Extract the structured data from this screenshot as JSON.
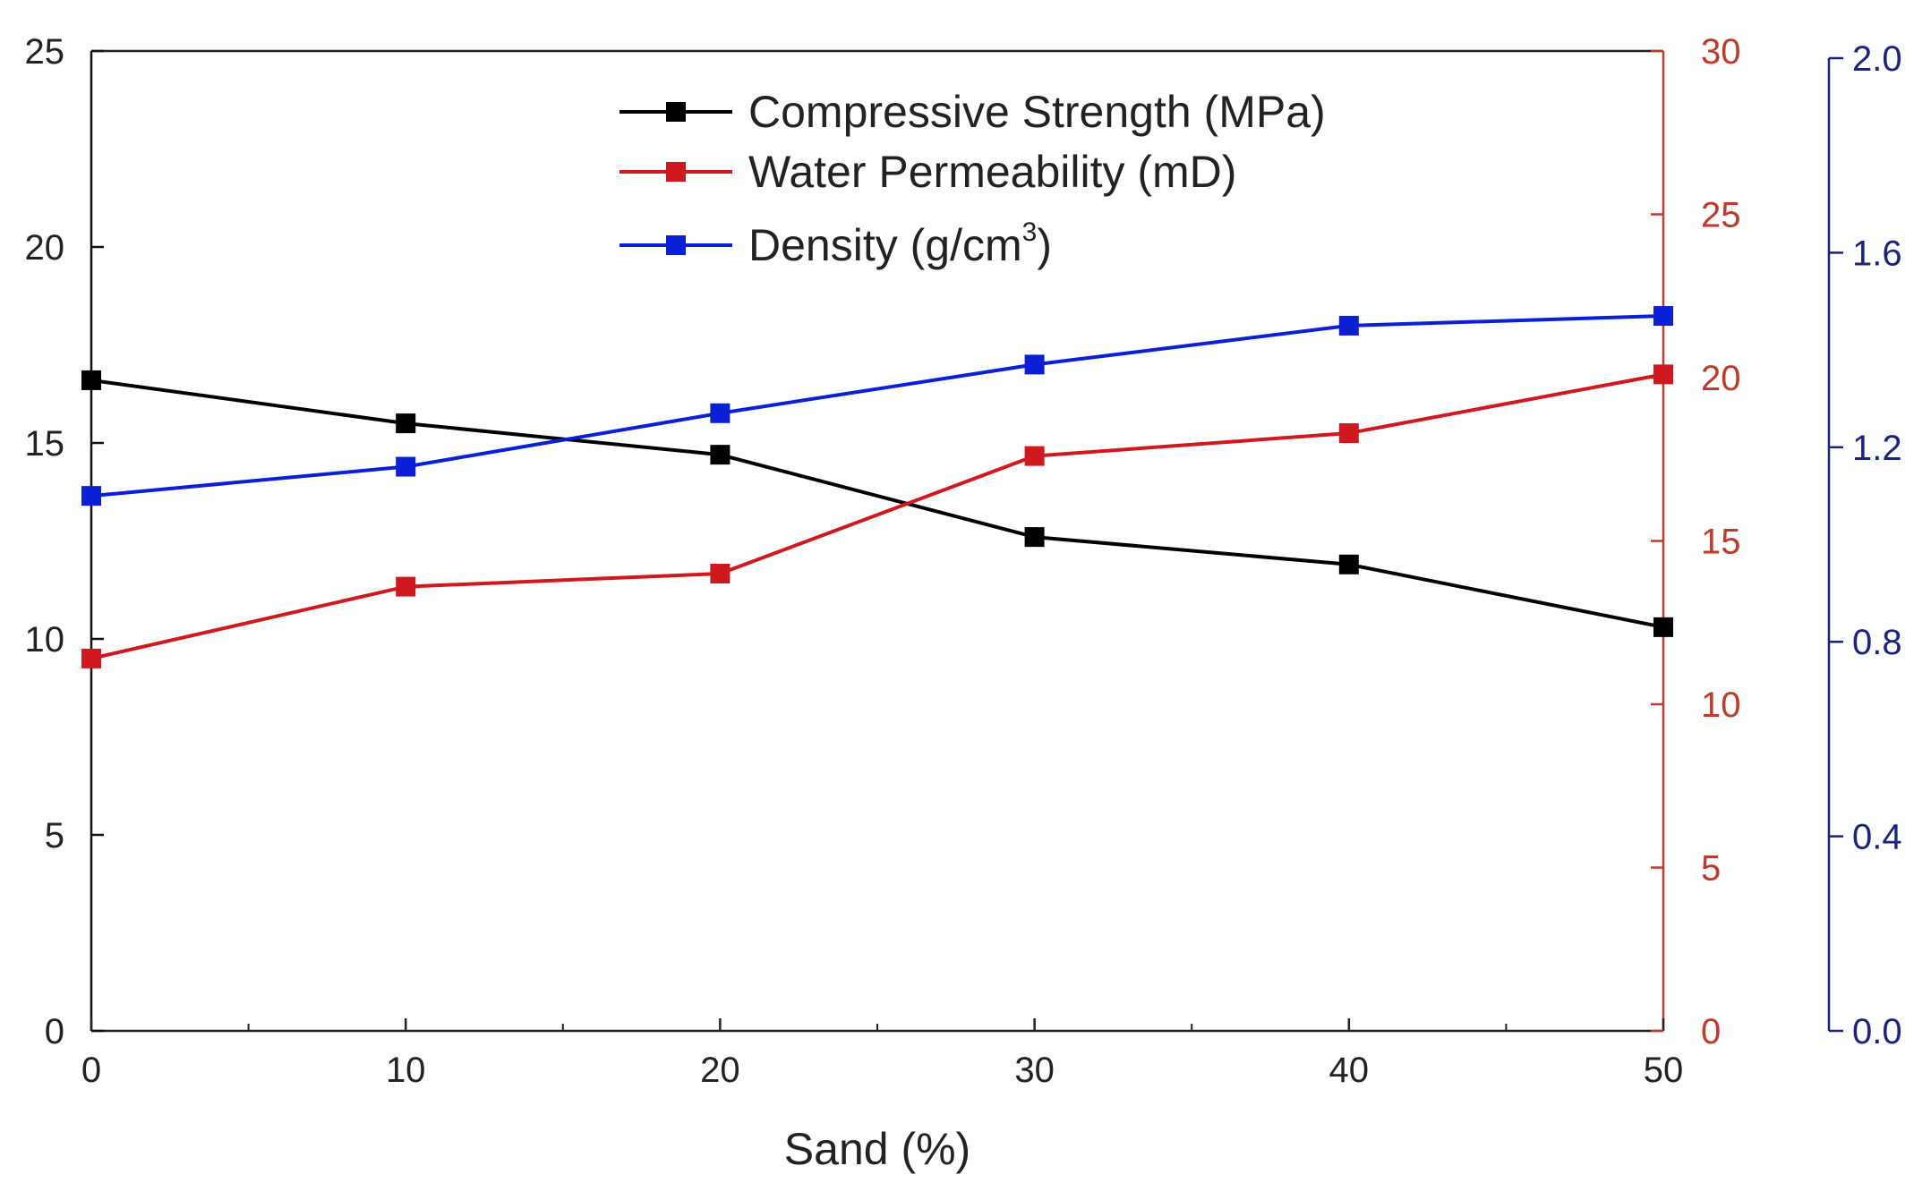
{
  "chart_data": {
    "type": "line",
    "title": "",
    "xlabel": "Sand (%)",
    "x": [
      0,
      10,
      20,
      30,
      40,
      50
    ],
    "xlim": [
      0,
      50
    ],
    "x_ticks": [
      "0",
      "10",
      "20",
      "30",
      "40",
      "50"
    ],
    "grid": false,
    "legend_position": "top-center",
    "axes": [
      {
        "id": "left",
        "color": "#111111",
        "ylim": [
          0,
          25
        ],
        "ticks": [
          "0",
          "5",
          "10",
          "15",
          "20",
          "25"
        ]
      },
      {
        "id": "right1",
        "color": "#c0392b",
        "ylim": [
          0,
          30
        ],
        "ticks": [
          "0",
          "5",
          "10",
          "15",
          "20",
          "25",
          "30"
        ]
      },
      {
        "id": "right2",
        "color": "#1a237e",
        "ylim": [
          0,
          2.0
        ],
        "ticks": [
          "0.0",
          "0.4",
          "0.8",
          "1.2",
          "1.6",
          "2.0"
        ]
      }
    ],
    "series": [
      {
        "name": "Compressive Strength (MPa)",
        "axis": "left",
        "color": "#000000",
        "values": [
          16.6,
          15.5,
          14.7,
          12.6,
          11.9,
          10.3
        ]
      },
      {
        "name": "Water Permeability (mD)",
        "axis": "right1",
        "color": "#d0191e",
        "values": [
          11.4,
          13.6,
          14.0,
          17.6,
          18.3,
          20.1
        ]
      },
      {
        "name": "Density (g/cm³)",
        "axis": "right2",
        "color": "#0a1fd6",
        "values": [
          1.1,
          1.16,
          1.27,
          1.37,
          1.45,
          1.47
        ]
      }
    ],
    "legend": {
      "items": [
        {
          "text": "Compressive Strength (MPa)",
          "color": "#000000"
        },
        {
          "text": "Water Permeability (mD)",
          "color": "#d0191e"
        },
        {
          "text_main": "Density (g/cm",
          "text_sup": "3",
          "text_end": ")",
          "color": "#0a1fd6"
        }
      ]
    }
  }
}
